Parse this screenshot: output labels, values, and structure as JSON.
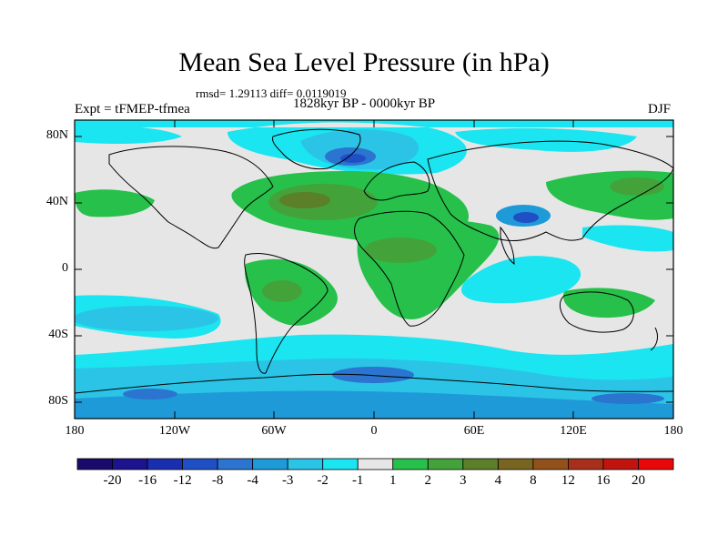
{
  "title": "Mean Sea Level Pressure (in hPa)",
  "stats": "rmsd= 1.29113 diff= 0.0119019",
  "period": "1828kyr BP - 0000kyr BP",
  "experiment": "Expt = tFMEP-tfmea",
  "season": "DJF",
  "axes": {
    "lat_ticks": [
      "80N",
      "40N",
      "0",
      "40S",
      "80S"
    ],
    "lon_ticks": [
      "180",
      "120W",
      "60W",
      "0",
      "60E",
      "120E",
      "180"
    ]
  },
  "colorbar": {
    "labels": [
      "-20",
      "-16",
      "-12",
      "-8",
      "-4",
      "-3",
      "-2",
      "-1",
      "1",
      "2",
      "3",
      "4",
      "8",
      "12",
      "16",
      "20"
    ],
    "colors": [
      "#1a0a6b",
      "#1c148f",
      "#1a2fb0",
      "#1f4fc4",
      "#2b74cf",
      "#1e9ad8",
      "#2bc4e6",
      "#1ae5f0",
      "#e6e6e6",
      "#27c04a",
      "#43a33a",
      "#5c7f2a",
      "#7a6520",
      "#92501a",
      "#a8301a",
      "#c0140f",
      "#e8080a"
    ]
  }
}
